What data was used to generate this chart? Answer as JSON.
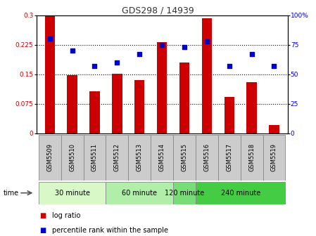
{
  "title": "GDS298 / 14939",
  "samples": [
    "GSM5509",
    "GSM5510",
    "GSM5511",
    "GSM5512",
    "GSM5513",
    "GSM5514",
    "GSM5515",
    "GSM5516",
    "GSM5517",
    "GSM5518",
    "GSM5519"
  ],
  "log_ratio": [
    0.3,
    0.148,
    0.107,
    0.152,
    0.135,
    0.232,
    0.18,
    0.292,
    0.093,
    0.13,
    0.022
  ],
  "percentile_rank": [
    80,
    70,
    57,
    60,
    67,
    75,
    73,
    78,
    57,
    67,
    57
  ],
  "bar_color": "#cc0000",
  "dot_color": "#0000cc",
  "yticks_left": [
    0,
    0.075,
    0.15,
    0.225,
    0.3
  ],
  "yticks_right": [
    0,
    25,
    50,
    75,
    100
  ],
  "ylim_left": [
    0,
    0.3
  ],
  "ylim_right": [
    0,
    100
  ],
  "grid_lines": [
    0.075,
    0.15,
    0.225
  ],
  "time_groups": [
    {
      "label": "30 minute",
      "start": 0,
      "end": 3,
      "color": "#d8f8c8"
    },
    {
      "label": "60 minute",
      "start": 3,
      "end": 6,
      "color": "#b0eeaa"
    },
    {
      "label": "120 minute",
      "start": 6,
      "end": 7,
      "color": "#77dd77"
    },
    {
      "label": "240 minute",
      "start": 7,
      "end": 11,
      "color": "#44cc44"
    }
  ],
  "legend_log_ratio": "log ratio",
  "legend_percentile": "percentile rank within the sample",
  "time_label": "time",
  "title_color": "#333333",
  "sample_box_color": "#cccccc",
  "sample_box_edge": "#888888"
}
